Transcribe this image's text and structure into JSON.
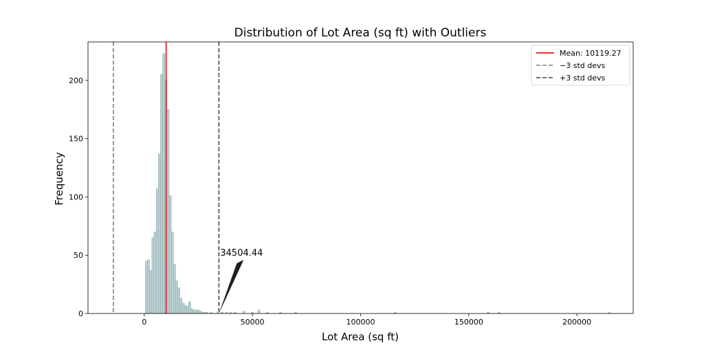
{
  "chart_data": {
    "type": "bar",
    "title": "Distribution of Lot Area (sq ft) with Outliers",
    "xlabel": "Lot Area (sq ft)",
    "ylabel": "Frequency",
    "xlim": [
      -26000,
      226000
    ],
    "ylim": [
      0,
      233
    ],
    "xticks": [
      0,
      50000,
      100000,
      150000,
      200000
    ],
    "yticks": [
      0,
      50,
      100,
      150,
      200
    ],
    "grid": false,
    "legend_position": "top-right",
    "bin_width": 1000,
    "bins": [
      {
        "x": 1000,
        "y": 45
      },
      {
        "x": 2000,
        "y": 46
      },
      {
        "x": 3000,
        "y": 37
      },
      {
        "x": 4000,
        "y": 65
      },
      {
        "x": 5000,
        "y": 70
      },
      {
        "x": 6000,
        "y": 107
      },
      {
        "x": 7000,
        "y": 137
      },
      {
        "x": 8000,
        "y": 205
      },
      {
        "x": 9000,
        "y": 223
      },
      {
        "x": 10000,
        "y": 200
      },
      {
        "x": 11000,
        "y": 175
      },
      {
        "x": 12000,
        "y": 101
      },
      {
        "x": 13000,
        "y": 70
      },
      {
        "x": 14000,
        "y": 42
      },
      {
        "x": 15000,
        "y": 28
      },
      {
        "x": 16000,
        "y": 22
      },
      {
        "x": 17000,
        "y": 13
      },
      {
        "x": 18000,
        "y": 9
      },
      {
        "x": 19000,
        "y": 7
      },
      {
        "x": 20000,
        "y": 6
      },
      {
        "x": 21000,
        "y": 10
      },
      {
        "x": 22000,
        "y": 4
      },
      {
        "x": 23000,
        "y": 3
      },
      {
        "x": 24000,
        "y": 3
      },
      {
        "x": 25000,
        "y": 3
      },
      {
        "x": 26000,
        "y": 2
      },
      {
        "x": 27000,
        "y": 1
      },
      {
        "x": 28000,
        "y": 1
      },
      {
        "x": 29000,
        "y": 1
      },
      {
        "x": 31000,
        "y": 1
      },
      {
        "x": 34000,
        "y": 1
      },
      {
        "x": 36000,
        "y": 1
      },
      {
        "x": 38000,
        "y": 1
      },
      {
        "x": 40000,
        "y": 1
      },
      {
        "x": 42000,
        "y": 1
      },
      {
        "x": 46000,
        "y": 2
      },
      {
        "x": 50000,
        "y": 1
      },
      {
        "x": 53000,
        "y": 3
      },
      {
        "x": 57000,
        "y": 1
      },
      {
        "x": 63000,
        "y": 1
      },
      {
        "x": 70000,
        "y": 1
      },
      {
        "x": 116000,
        "y": 1
      },
      {
        "x": 159000,
        "y": 1
      },
      {
        "x": 164000,
        "y": 1
      },
      {
        "x": 215000,
        "y": 1
      }
    ],
    "lines": [
      {
        "label": "Mean: 10119.27",
        "x": 10119.27,
        "style": "solid",
        "color": "#e8312f"
      },
      {
        "label": "−3 std devs",
        "x": -14265.9,
        "style": "dashed",
        "color": "#7f7f7f"
      },
      {
        "label": "+3 std devs",
        "x": 34504.44,
        "style": "dashed",
        "color": "#2f4f4f"
      }
    ],
    "annotation": {
      "text": "34504.44",
      "x": 34504.44,
      "y": 0
    },
    "colors": {
      "bar_fill": "#b9cfd1",
      "bar_edge": "#8fa9ac",
      "annotation_arrow": "#1f1f1f"
    }
  }
}
